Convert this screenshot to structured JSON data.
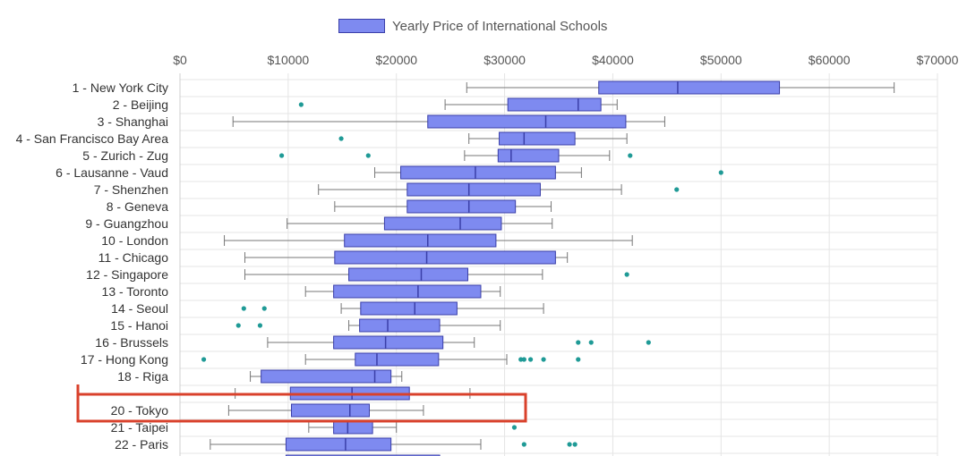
{
  "chart_data": {
    "type": "boxplot",
    "orientation": "horizontal",
    "title": "",
    "legend": {
      "label": "Yearly Price of International Schools",
      "position": "top"
    },
    "x_axis": {
      "min": 0,
      "max": 70000,
      "position": "top",
      "ticks": [
        "$0",
        "$10000",
        "$20000",
        "$30000",
        "$40000",
        "$50000",
        "$60000",
        "$70000"
      ]
    },
    "grid": true,
    "colors": {
      "box_fill": "#7e8af0",
      "box_stroke": "#3a3fa8",
      "whisker": "#777777",
      "median": "#3a3fa8",
      "outlier": "#1f9a96",
      "grid": "#e5e5e5",
      "highlight": "#d9412b"
    },
    "categories": [
      {
        "label": "1 - New York City",
        "min": 26500,
        "q1": 38700,
        "median": 46000,
        "q3": 55400,
        "max": 66000,
        "outliers": []
      },
      {
        "label": "2 - Beijing",
        "min": 24500,
        "q1": 30300,
        "median": 36800,
        "q3": 38900,
        "max": 40400,
        "outliers": [
          11200
        ]
      },
      {
        "label": "3 - Shanghai",
        "min": 4900,
        "q1": 22900,
        "median": 33800,
        "q3": 41200,
        "max": 44800,
        "outliers": []
      },
      {
        "label": "4 - San Francisco Bay Area",
        "min": 26700,
        "q1": 29500,
        "median": 31800,
        "q3": 36500,
        "max": 41300,
        "outliers": [
          14900
        ]
      },
      {
        "label": "5 - Zurich - Zug",
        "min": 26300,
        "q1": 29400,
        "median": 30600,
        "q3": 35000,
        "max": 39700,
        "outliers": [
          9400,
          17400,
          41600
        ]
      },
      {
        "label": "6 - Lausanne - Vaud",
        "min": 18000,
        "q1": 20400,
        "median": 27300,
        "q3": 34700,
        "max": 37100,
        "outliers": [
          50000
        ]
      },
      {
        "label": "7 - Shenzhen",
        "min": 12800,
        "q1": 21000,
        "median": 26700,
        "q3": 33300,
        "max": 40800,
        "outliers": [
          45900
        ]
      },
      {
        "label": "8 - Geneva",
        "min": 14300,
        "q1": 21000,
        "median": 26700,
        "q3": 31000,
        "max": 34300,
        "outliers": []
      },
      {
        "label": "9 - Guangzhou",
        "min": 9900,
        "q1": 18900,
        "median": 25900,
        "q3": 29700,
        "max": 34400,
        "outliers": []
      },
      {
        "label": "10 - London",
        "min": 4100,
        "q1": 15200,
        "median": 22900,
        "q3": 29200,
        "max": 41800,
        "outliers": []
      },
      {
        "label": "11 - Chicago",
        "min": 6000,
        "q1": 14300,
        "median": 22800,
        "q3": 34700,
        "max": 35800,
        "outliers": []
      },
      {
        "label": "12 - Singapore",
        "min": 6000,
        "q1": 15600,
        "median": 22300,
        "q3": 26600,
        "max": 33500,
        "outliers": [
          41300
        ]
      },
      {
        "label": "13 - Toronto",
        "min": 11600,
        "q1": 14200,
        "median": 22000,
        "q3": 27800,
        "max": 29600,
        "outliers": []
      },
      {
        "label": "14 - Seoul",
        "min": 14900,
        "q1": 16700,
        "median": 21700,
        "q3": 25600,
        "max": 33600,
        "outliers": [
          5900,
          7800
        ]
      },
      {
        "label": "15 - Hanoi",
        "min": 15600,
        "q1": 16600,
        "median": 19200,
        "q3": 24000,
        "max": 29600,
        "outliers": [
          5400,
          7400
        ]
      },
      {
        "label": "16 - Brussels",
        "min": 8100,
        "q1": 14200,
        "median": 19000,
        "q3": 24300,
        "max": 27200,
        "outliers": [
          36800,
          38000,
          43300
        ]
      },
      {
        "label": "17 - Hong Kong",
        "min": 11600,
        "q1": 16200,
        "median": 18200,
        "q3": 23900,
        "max": 30200,
        "outliers": [
          2200,
          31500,
          31800,
          32400,
          33600,
          36800
        ]
      },
      {
        "label": "18 - Riga",
        "min": 6500,
        "q1": 7500,
        "median": 18000,
        "q3": 19500,
        "max": 20500,
        "outliers": []
      },
      {
        "label": "",
        "min": 5100,
        "q1": 10200,
        "median": 15900,
        "q3": 21200,
        "max": 26800,
        "outliers": []
      },
      {
        "label": "20 - Tokyo",
        "min": 4500,
        "q1": 10300,
        "median": 15700,
        "q3": 17500,
        "max": 22500,
        "outliers": []
      },
      {
        "label": "21 - Taipei",
        "min": 11900,
        "q1": 14200,
        "median": 15500,
        "q3": 17800,
        "max": 20000,
        "outliers": [
          30900
        ]
      },
      {
        "label": "22 - Paris",
        "min": 2800,
        "q1": 9800,
        "median": 15300,
        "q3": 19500,
        "max": 27800,
        "outliers": [
          31800,
          36000,
          36500
        ]
      }
    ]
  }
}
